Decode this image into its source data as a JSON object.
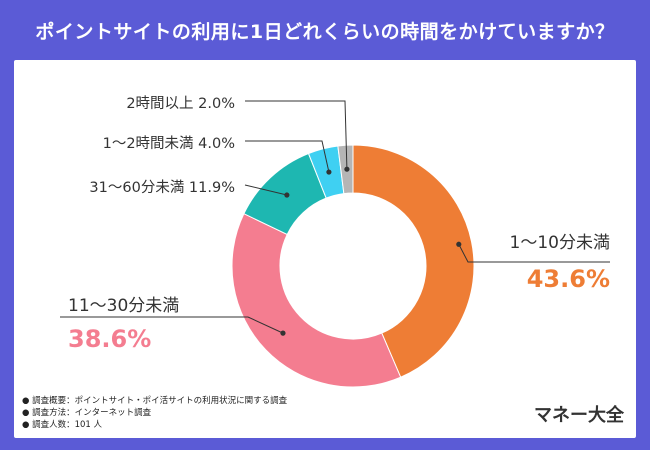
{
  "title": "ポイントサイトの利用に1日どれくらいの時間をかけていますか？",
  "chart_data": {
    "type": "pie",
    "categories": [
      "1〜10分未満",
      "11〜30分未満",
      "31〜60分未満",
      "1〜2時間未満",
      "2時間以上"
    ],
    "values": [
      43.6,
      38.6,
      11.9,
      4.0,
      2.0
    ],
    "value_labels": [
      "43.6%",
      "38.6%",
      "11.9%",
      "4.0%",
      "2.0%"
    ],
    "colors": [
      "#ee7d35",
      "#f47d90",
      "#1eb7b1",
      "#3fd0f2",
      "#b5b5b5"
    ],
    "start": "12 o'clock, clockwise",
    "donut": true
  },
  "notes": [
    "● 調査概要：ポイントサイト・ポイ活サイトの利用状況に関する調査",
    "● 調査方法：インターネット調査",
    "● 調査人数：101 人"
  ],
  "brand": "マネー大全"
}
